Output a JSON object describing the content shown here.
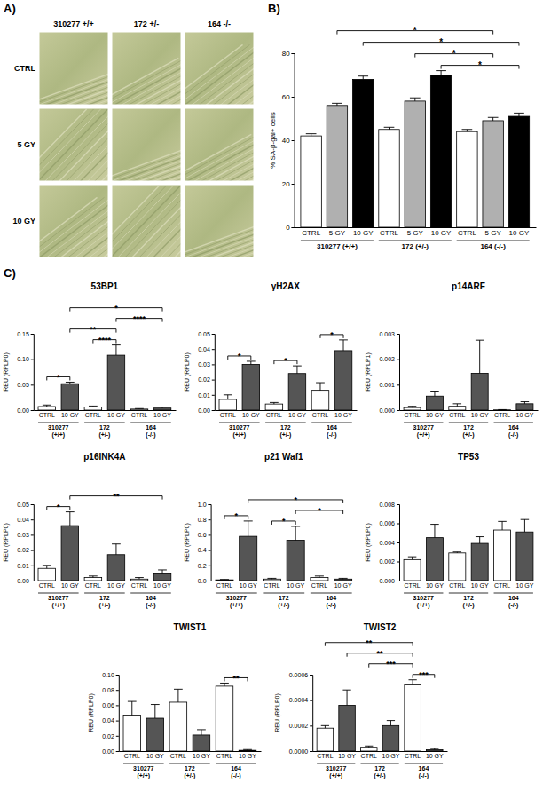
{
  "panel_labels": {
    "A": "A)",
    "B": "B)",
    "C": "C)"
  },
  "image_panel": {
    "columns": [
      "310277 +/+",
      "172 +/-",
      "164 -/-"
    ],
    "rows": [
      "CTRL",
      "5 GY",
      "10 GY"
    ]
  },
  "chart_data": [
    {
      "type": "bar",
      "y_label": "% SA-β-gal+ cells",
      "categories": [
        "CTRL",
        "5 GY",
        "10 GY",
        "CTRL",
        "5 GY",
        "10 GY",
        "CTRL",
        "5 GY",
        "10 GY"
      ],
      "groups": [
        "310277 (+/+)",
        "172 (+/-)",
        "164 (-/-)"
      ],
      "values": [
        42,
        56,
        68,
        45,
        58,
        70,
        44,
        49,
        51
      ],
      "errors": [
        1,
        1,
        1.5,
        1,
        1.5,
        2,
        1,
        1.5,
        1.5
      ],
      "colors": [
        "#ffffff",
        "#b0b0b0",
        "#000000",
        "#ffffff",
        "#b0b0b0",
        "#000000",
        "#ffffff",
        "#b0b0b0",
        "#000000"
      ],
      "ylim": [
        0,
        80
      ],
      "yticks": [
        0,
        20,
        40,
        60,
        80
      ],
      "annotations": [
        {
          "from": 2,
          "to": 8,
          "label": "*"
        },
        {
          "from": 5,
          "to": 8,
          "label": "*"
        },
        {
          "from": 1,
          "to": 7,
          "label": "*"
        },
        {
          "from": 4,
          "to": 7,
          "label": "*"
        }
      ]
    },
    {
      "type": "bar",
      "title": "53BP1",
      "y_label": "REU (RPLP0)",
      "categories": [
        "CTRL",
        "10 GY",
        "CTRL",
        "10 GY",
        "CTRL",
        "10 GY"
      ],
      "groups": [
        "310277 (+/+)",
        "172 (+/-)",
        "164 (-/-)"
      ],
      "values": [
        0.007,
        0.052,
        0.006,
        0.108,
        0.002,
        0.004
      ],
      "errors": [
        0.003,
        0.003,
        0.002,
        0.02,
        0.001,
        0.002
      ],
      "colors": [
        "#ffffff",
        "#555555",
        "#ffffff",
        "#555555",
        "#ffffff",
        "#555555"
      ],
      "ylim": [
        0,
        0.15
      ],
      "yticks": [
        {
          "value": 0,
          "label": "0.00"
        },
        {
          "value": 0.05,
          "label": "0.05"
        },
        {
          "value": 0.1,
          "label": "0.10"
        },
        {
          "value": 0.15,
          "label": "0.15"
        }
      ],
      "annotations": [
        {
          "from": 0,
          "to": 1,
          "label": "*"
        },
        {
          "from": 1,
          "to": 3,
          "label": "**"
        },
        {
          "from": 2,
          "to": 3,
          "label": "****"
        },
        {
          "from": 3,
          "to": 5,
          "label": "****"
        },
        {
          "from": 1,
          "to": 5,
          "label": "*"
        }
      ]
    },
    {
      "type": "bar",
      "title": "γH2AX",
      "y_label": "REU (RPLP0)",
      "categories": [
        "CTRL",
        "10 GY",
        "CTRL",
        "10 GY",
        "CTRL",
        "10 GY"
      ],
      "groups": [
        "310277 (+/+)",
        "172 (+/-)",
        "164 (-/-)"
      ],
      "values": [
        0.007,
        0.03,
        0.004,
        0.024,
        0.013,
        0.039
      ],
      "errors": [
        0.003,
        0.002,
        0.001,
        0.005,
        0.005,
        0.007
      ],
      "colors": [
        "#ffffff",
        "#555555",
        "#ffffff",
        "#555555",
        "#ffffff",
        "#555555"
      ],
      "ylim": [
        0,
        0.05
      ],
      "yticks": [
        {
          "value": 0,
          "label": "0.00"
        },
        {
          "value": 0.01,
          "label": "0.01"
        },
        {
          "value": 0.02,
          "label": "0.02"
        },
        {
          "value": 0.03,
          "label": "0.03"
        },
        {
          "value": 0.04,
          "label": "0.04"
        },
        {
          "value": 0.05,
          "label": "0.05"
        }
      ],
      "annotations": [
        {
          "from": 0,
          "to": 1,
          "label": "*"
        },
        {
          "from": 2,
          "to": 3,
          "label": "*"
        },
        {
          "from": 4,
          "to": 5,
          "label": "*"
        }
      ]
    },
    {
      "type": "bar",
      "title": "p14ARF",
      "y_label": "REU (RPLP1)",
      "categories": [
        "CTRL",
        "10 GY",
        "CTRL",
        "10 GY",
        "CTRL",
        "10 GY"
      ],
      "groups": [
        "310277 (+/+)",
        "172 (+/-)",
        "164 (-/-)"
      ],
      "values": [
        0.0001,
        0.00055,
        0.00015,
        0.00145,
        1e-05,
        0.00025
      ],
      "errors": [
        5e-05,
        0.0002,
        0.0001,
        0.0013,
        1e-05,
        8e-05
      ],
      "colors": [
        "#ffffff",
        "#555555",
        "#ffffff",
        "#555555",
        "#ffffff",
        "#555555"
      ],
      "ylim": [
        0,
        0.003
      ],
      "yticks": [
        {
          "value": 0,
          "label": "0.000"
        },
        {
          "value": 0.001,
          "label": "0.001"
        },
        {
          "value": 0.002,
          "label": "0.002"
        },
        {
          "value": 0.003,
          "label": "0.003"
        }
      ],
      "annotations": []
    },
    {
      "type": "bar",
      "title": "p16INK4A",
      "y_label": "REU (RPLP0)",
      "categories": [
        "CTRL",
        "10 GY",
        "CTRL",
        "10 GY",
        "CTRL",
        "10 GY"
      ],
      "groups": [
        "310277 (+/+)",
        "172 (+/-)",
        "164 (-/-)"
      ],
      "values": [
        0.008,
        0.036,
        0.002,
        0.017,
        0.001,
        0.005
      ],
      "errors": [
        0.002,
        0.009,
        0.001,
        0.007,
        0.001,
        0.002
      ],
      "colors": [
        "#ffffff",
        "#555555",
        "#ffffff",
        "#555555",
        "#ffffff",
        "#555555"
      ],
      "ylim": [
        0,
        0.05
      ],
      "yticks": [
        {
          "value": 0,
          "label": "0.00"
        },
        {
          "value": 0.01,
          "label": "0.01"
        },
        {
          "value": 0.02,
          "label": "0.02"
        },
        {
          "value": 0.03,
          "label": "0.03"
        },
        {
          "value": 0.04,
          "label": "0.04"
        },
        {
          "value": 0.05,
          "label": "0.05"
        }
      ],
      "annotations": [
        {
          "from": 0,
          "to": 1,
          "label": "*"
        },
        {
          "from": 1,
          "to": 5,
          "label": "**"
        }
      ]
    },
    {
      "type": "bar",
      "title": "p21 Waf1",
      "y_label": "REU (RPLP0)",
      "categories": [
        "CTRL",
        "10 GY",
        "CTRL",
        "10 GY",
        "CTRL",
        "10 GY"
      ],
      "groups": [
        "310277 (+/+)",
        "172 (+/-)",
        "164 (-/-)"
      ],
      "values": [
        0.01,
        0.58,
        0.02,
        0.53,
        0.04,
        0.02
      ],
      "errors": [
        0.005,
        0.2,
        0.01,
        0.18,
        0.02,
        0.01
      ],
      "colors": [
        "#ffffff",
        "#555555",
        "#ffffff",
        "#555555",
        "#ffffff",
        "#555555"
      ],
      "ylim": [
        0,
        1.0
      ],
      "yticks": [
        {
          "value": 0,
          "label": "0.0"
        },
        {
          "value": 0.2,
          "label": "0.2"
        },
        {
          "value": 0.4,
          "label": "0.4"
        },
        {
          "value": 0.6,
          "label": "0.6"
        },
        {
          "value": 0.8,
          "label": "0.8"
        },
        {
          "value": 1.0,
          "label": "1.0"
        }
      ],
      "annotations": [
        {
          "from": 0,
          "to": 1,
          "label": "*"
        },
        {
          "from": 2,
          "to": 3,
          "label": "*"
        },
        {
          "from": 3,
          "to": 5,
          "label": "*"
        },
        {
          "from": 1,
          "to": 5,
          "label": "*"
        }
      ]
    },
    {
      "type": "bar",
      "title": "TP53",
      "y_label": "REU (RPLP0)",
      "categories": [
        "CTRL",
        "10 GY",
        "CTRL",
        "10 GY",
        "CTRL",
        "10 GY"
      ],
      "groups": [
        "310277 (+/+)",
        "172 (+/-)",
        "164 (-/-)"
      ],
      "values": [
        0.0022,
        0.0045,
        0.0029,
        0.0039,
        0.0053,
        0.0051
      ],
      "errors": [
        0.0003,
        0.0014,
        0.0001,
        0.0007,
        0.0009,
        0.0013
      ],
      "colors": [
        "#ffffff",
        "#555555",
        "#ffffff",
        "#555555",
        "#ffffff",
        "#555555"
      ],
      "ylim": [
        0,
        0.008
      ],
      "yticks": [
        {
          "value": 0,
          "label": "0.000"
        },
        {
          "value": 0.002,
          "label": "0.002"
        },
        {
          "value": 0.004,
          "label": "0.004"
        },
        {
          "value": 0.006,
          "label": "0.006"
        },
        {
          "value": 0.008,
          "label": "0.008"
        }
      ],
      "annotations": []
    },
    {
      "type": "bar",
      "title": "TWIST1",
      "y_label": "REU (RPLP0)",
      "categories": [
        "CTRL",
        "10 GY",
        "CTRL",
        "10 GY",
        "CTRL",
        "10 GY"
      ],
      "groups": [
        "310277 (+/+)",
        "172 (+/-)",
        "164 (-/-)"
      ],
      "values": [
        0.047,
        0.043,
        0.064,
        0.021,
        0.085,
        0.001
      ],
      "errors": [
        0.018,
        0.018,
        0.017,
        0.007,
        0.004,
        0.001
      ],
      "colors": [
        "#ffffff",
        "#555555",
        "#ffffff",
        "#555555",
        "#ffffff",
        "#555555"
      ],
      "ylim": [
        0,
        0.1
      ],
      "yticks": [
        {
          "value": 0,
          "label": "0.00"
        },
        {
          "value": 0.02,
          "label": "0.02"
        },
        {
          "value": 0.04,
          "label": "0.04"
        },
        {
          "value": 0.06,
          "label": "0.06"
        },
        {
          "value": 0.08,
          "label": "0.08"
        },
        {
          "value": 0.1,
          "label": "0.10"
        }
      ],
      "annotations": [
        {
          "from": 4,
          "to": 5,
          "label": "**"
        }
      ]
    },
    {
      "type": "bar",
      "title": "TWIST2",
      "y_label": "REU (RPLP0)",
      "categories": [
        "CTRL",
        "10 GY",
        "CTRL",
        "10 GY",
        "CTRL",
        "10 GY"
      ],
      "groups": [
        "310277 (+/+)",
        "172 (+/-)",
        "164 (-/-)"
      ],
      "values": [
        0.00018,
        0.00036,
        3e-05,
        0.0002,
        0.00052,
        1e-05
      ],
      "errors": [
        2e-05,
        0.00012,
        1e-05,
        4e-05,
        4e-05,
        1e-05
      ],
      "colors": [
        "#ffffff",
        "#555555",
        "#ffffff",
        "#555555",
        "#ffffff",
        "#555555"
      ],
      "ylim": [
        0,
        0.0006
      ],
      "yticks": [
        {
          "value": 0,
          "label": "0.0000"
        },
        {
          "value": 0.0002,
          "label": "0.0002"
        },
        {
          "value": 0.0004,
          "label": "0.0004"
        },
        {
          "value": 0.0006,
          "label": "0.0006"
        }
      ],
      "annotations": [
        {
          "from": 0,
          "to": 4,
          "label": "**"
        },
        {
          "from": 1,
          "to": 4,
          "label": "**"
        },
        {
          "from": 2,
          "to": 4,
          "label": "***"
        },
        {
          "from": 4,
          "to": 5,
          "label": "***"
        }
      ]
    }
  ]
}
